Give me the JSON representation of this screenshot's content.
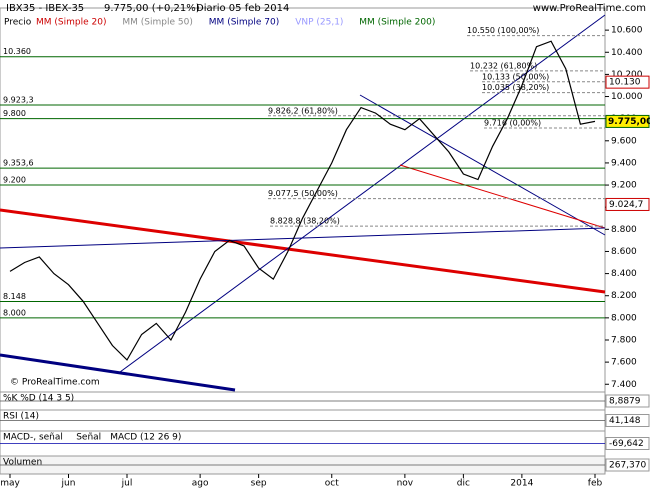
{
  "chart_data": {
    "type": "line",
    "title": "IBX35 - IBEX-35",
    "last": "9.775,00 (+0,21%)",
    "period": "Diario 05 feb 2014",
    "source": "www.ProRealTime.com",
    "watermark": "© ProRealTime.com",
    "indicators": [
      {
        "name": "MM (Simple 20)",
        "color": "#cc0000"
      },
      {
        "name": "MM (Simple 50)",
        "color": "#888888"
      },
      {
        "name": "MM (Simple 70)",
        "color": "#000080"
      },
      {
        "name": "VNP (25,1)",
        "color": "#9999ff"
      },
      {
        "name": "MM (Simple 200)",
        "color": "#006600"
      }
    ],
    "categories": [
      "may",
      null,
      null,
      null,
      "jun",
      null,
      null,
      null,
      "jul",
      null,
      null,
      null,
      null,
      "ago",
      null,
      null,
      null,
      "sep",
      null,
      null,
      null,
      null,
      "oct",
      null,
      null,
      null,
      null,
      "nov",
      null,
      null,
      null,
      "dic",
      null,
      null,
      null,
      "2014",
      null,
      null,
      null,
      null,
      "feb"
    ],
    "series": [
      {
        "name": "Precio",
        "color": "#000000",
        "values": [
          8420,
          8500,
          8550,
          8400,
          8300,
          8150,
          7950,
          7750,
          7620,
          7850,
          7950,
          7800,
          8050,
          8350,
          8600,
          8700,
          8650,
          8450,
          8350,
          8600,
          8900,
          9150,
          9400,
          9700,
          9900,
          9850,
          9750,
          9700,
          9800,
          9650,
          9500,
          9300,
          9250,
          9550,
          9800,
          10100,
          10450,
          10500,
          10250,
          9750,
          9775
        ]
      }
    ],
    "ylim": [
      7330,
      10800
    ],
    "yticks": [
      {
        "value": 7400,
        "label": "7.400"
      },
      {
        "value": 7600,
        "label": "7.600"
      },
      {
        "value": 7800,
        "label": "7.800"
      },
      {
        "value": 8000,
        "label": "8.000"
      },
      {
        "value": 8200,
        "label": "8.200"
      },
      {
        "value": 8400,
        "label": "8.400"
      },
      {
        "value": 8600,
        "label": "8.600"
      },
      {
        "value": 8800,
        "label": "8.800"
      },
      {
        "value": 9000,
        "label": "9.000"
      },
      {
        "value": 9200,
        "label": "9.200"
      },
      {
        "value": 9400,
        "label": "9.400"
      },
      {
        "value": 9600,
        "label": "9.600"
      },
      {
        "value": 9800,
        "label": "9.800"
      },
      {
        "value": 10000,
        "label": "10.000"
      },
      {
        "value": 10200,
        "label": "10.200"
      },
      {
        "value": 10400,
        "label": "10.400"
      },
      {
        "value": 10600,
        "label": "10.600"
      }
    ],
    "price_tag": {
      "value": 9775,
      "label": "9.775,00"
    },
    "right_tags": [
      {
        "value": 10130,
        "label": "10.130"
      },
      {
        "value": 9024.7,
        "label": "9.024,7"
      }
    ],
    "levels": [
      {
        "value": 10360,
        "label": "10.360"
      },
      {
        "value": 9923.3,
        "label": "9.923,3"
      },
      {
        "value": 9800,
        "label": "9.800"
      },
      {
        "value": 9353.6,
        "label": "9.353,6"
      },
      {
        "value": 9200,
        "label": "9.200"
      },
      {
        "value": 8148,
        "label": "8.148"
      },
      {
        "value": 8000,
        "label": "8.000"
      }
    ],
    "fib": [
      {
        "value": 10550,
        "label": "10.550 (100,00%)"
      },
      {
        "value": 10232,
        "label": "10.232 (61,80%)"
      },
      {
        "value": 10133,
        "label": "10.133 (50,00%)"
      },
      {
        "value": 10035,
        "label": "10.035 (38,20%)"
      },
      {
        "value": 9826.2,
        "label": "9.826,2 (61,80%)"
      },
      {
        "value": 9716,
        "label": "9.716 (0,00%)"
      },
      {
        "value": 9077.5,
        "label": "9.077,5 (50,00%)"
      },
      {
        "value": 8828.8,
        "label": "8.828,8 (38,20%)"
      }
    ],
    "panels": [
      {
        "labels": [
          "%K",
          "%D (14 3 5)"
        ],
        "value": "8,8879"
      },
      {
        "labels": [
          "RSI (14)"
        ],
        "value": "41,148"
      },
      {
        "labels": [
          "MACD-, señal",
          "Señal",
          "MACD (12 26 9)"
        ],
        "value": "-69,642"
      },
      {
        "labels": [
          "Volumen"
        ],
        "value": "267,370"
      }
    ]
  }
}
